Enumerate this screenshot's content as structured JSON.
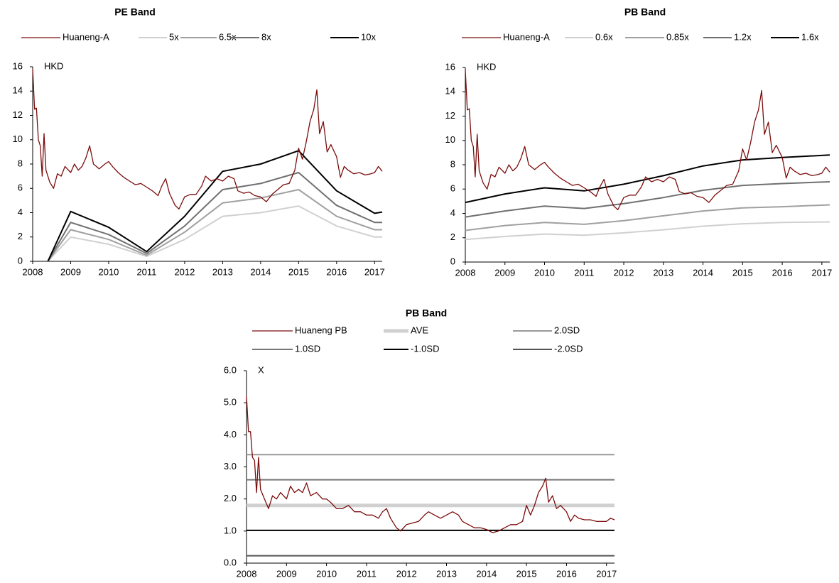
{
  "chart_data": [
    {
      "type": "line",
      "title": "PE Band",
      "unit": "HKD",
      "xlim": [
        2008,
        2017.2
      ],
      "xticks": [
        2008,
        2009,
        2010,
        2011,
        2012,
        2013,
        2014,
        2015,
        2016,
        2017
      ],
      "ylim": [
        0,
        16
      ],
      "yticks": [
        0,
        2,
        4,
        6,
        8,
        10,
        12,
        14,
        16
      ],
      "series": [
        {
          "name": "Huaneng-A",
          "color": "#7b0c0c",
          "x": [
            2008.0,
            2008.05,
            2008.1,
            2008.15,
            2008.2,
            2008.25,
            2008.3,
            2008.35,
            2008.45,
            2008.55,
            2008.65,
            2008.75,
            2008.85,
            2009.0,
            2009.1,
            2009.2,
            2009.3,
            2009.4,
            2009.5,
            2009.6,
            2009.75,
            2009.9,
            2010.0,
            2010.1,
            2010.25,
            2010.4,
            2010.55,
            2010.7,
            2010.85,
            2011.0,
            2011.15,
            2011.3,
            2011.4,
            2011.5,
            2011.6,
            2011.75,
            2011.85,
            2012.0,
            2012.15,
            2012.3,
            2012.45,
            2012.55,
            2012.7,
            2012.85,
            2013.0,
            2013.15,
            2013.3,
            2013.4,
            2013.55,
            2013.7,
            2013.85,
            2014.0,
            2014.15,
            2014.3,
            2014.45,
            2014.6,
            2014.75,
            2014.9,
            2015.0,
            2015.1,
            2015.2,
            2015.3,
            2015.4,
            2015.48,
            2015.55,
            2015.65,
            2015.75,
            2015.85,
            2016.0,
            2016.1,
            2016.2,
            2016.3,
            2016.45,
            2016.6,
            2016.75,
            2016.9,
            2017.0,
            2017.1,
            2017.2
          ],
          "values": [
            15.8,
            12.5,
            12.6,
            10.0,
            9.5,
            7.0,
            10.5,
            7.5,
            6.5,
            6.0,
            7.2,
            7.0,
            7.8,
            7.3,
            8.0,
            7.5,
            7.8,
            8.5,
            9.5,
            8.0,
            7.6,
            8.0,
            8.2,
            7.8,
            7.3,
            6.9,
            6.6,
            6.3,
            6.4,
            6.1,
            5.8,
            5.4,
            6.2,
            6.8,
            5.6,
            4.6,
            4.3,
            5.3,
            5.5,
            5.5,
            6.2,
            7.0,
            6.6,
            6.8,
            6.6,
            7.0,
            6.8,
            5.8,
            5.6,
            5.7,
            5.4,
            5.3,
            4.9,
            5.5,
            5.9,
            6.3,
            6.4,
            7.5,
            9.3,
            8.4,
            9.8,
            11.5,
            12.5,
            14.1,
            10.5,
            11.5,
            9.0,
            9.6,
            8.6,
            6.9,
            7.8,
            7.5,
            7.2,
            7.3,
            7.1,
            7.2,
            7.3,
            7.8,
            7.4
          ]
        },
        {
          "name": "5x",
          "color": "#d0d0d0",
          "x": [
            2008.4,
            2009,
            2010,
            2011,
            2012,
            2013,
            2014,
            2015,
            2016,
            2017,
            2017.2
          ],
          "values": [
            0,
            2.0,
            1.4,
            0.4,
            1.8,
            3.7,
            4.0,
            4.55,
            2.9,
            2.0,
            2.0
          ]
        },
        {
          "name": "6.5x",
          "color": "#a0a0a0",
          "x": [
            2008.4,
            2009,
            2010,
            2011,
            2012,
            2013,
            2014,
            2015,
            2016,
            2017,
            2017.2
          ],
          "values": [
            0,
            2.6,
            1.8,
            0.5,
            2.4,
            4.8,
            5.2,
            5.9,
            3.7,
            2.6,
            2.6
          ]
        },
        {
          "name": "8x",
          "color": "#707070",
          "x": [
            2008.4,
            2009,
            2010,
            2011,
            2012,
            2013,
            2014,
            2015,
            2016,
            2017,
            2017.2
          ],
          "values": [
            0,
            3.2,
            2.2,
            0.65,
            2.9,
            5.9,
            6.4,
            7.3,
            4.6,
            3.2,
            3.2
          ]
        },
        {
          "name": "10x",
          "color": "#000000",
          "x": [
            2008.4,
            2009,
            2010,
            2011,
            2012,
            2013,
            2014,
            2015,
            2016,
            2017,
            2017.2
          ],
          "values": [
            0,
            4.1,
            2.8,
            0.8,
            3.7,
            7.4,
            8.0,
            9.1,
            5.8,
            3.95,
            4.05
          ]
        }
      ]
    },
    {
      "type": "line",
      "title": "PB Band",
      "unit": "HKD",
      "xlim": [
        2008,
        2017.2
      ],
      "xticks": [
        2008,
        2009,
        2010,
        2011,
        2012,
        2013,
        2014,
        2015,
        2016,
        2017
      ],
      "ylim": [
        0,
        16
      ],
      "yticks": [
        0,
        2,
        4,
        6,
        8,
        10,
        12,
        14,
        16
      ],
      "series": [
        {
          "name": "Huaneng-A",
          "color": "#7b0c0c",
          "x": [
            2008.0,
            2008.05,
            2008.1,
            2008.15,
            2008.2,
            2008.25,
            2008.3,
            2008.35,
            2008.45,
            2008.55,
            2008.65,
            2008.75,
            2008.85,
            2009.0,
            2009.1,
            2009.2,
            2009.3,
            2009.4,
            2009.5,
            2009.6,
            2009.75,
            2009.9,
            2010.0,
            2010.1,
            2010.25,
            2010.4,
            2010.55,
            2010.7,
            2010.85,
            2011.0,
            2011.15,
            2011.3,
            2011.4,
            2011.5,
            2011.6,
            2011.75,
            2011.85,
            2012.0,
            2012.15,
            2012.3,
            2012.45,
            2012.55,
            2012.7,
            2012.85,
            2013.0,
            2013.15,
            2013.3,
            2013.4,
            2013.55,
            2013.7,
            2013.85,
            2014.0,
            2014.15,
            2014.3,
            2014.45,
            2014.6,
            2014.75,
            2014.9,
            2015.0,
            2015.1,
            2015.2,
            2015.3,
            2015.4,
            2015.48,
            2015.55,
            2015.65,
            2015.75,
            2015.85,
            2016.0,
            2016.1,
            2016.2,
            2016.3,
            2016.45,
            2016.6,
            2016.75,
            2016.9,
            2017.0,
            2017.1,
            2017.2
          ],
          "values": [
            15.8,
            12.5,
            12.6,
            10.0,
            9.5,
            7.0,
            10.5,
            7.5,
            6.5,
            6.0,
            7.2,
            7.0,
            7.8,
            7.3,
            8.0,
            7.5,
            7.8,
            8.5,
            9.5,
            8.0,
            7.6,
            8.0,
            8.2,
            7.8,
            7.3,
            6.9,
            6.6,
            6.3,
            6.4,
            6.1,
            5.8,
            5.4,
            6.2,
            6.8,
            5.6,
            4.6,
            4.3,
            5.3,
            5.5,
            5.5,
            6.2,
            7.0,
            6.6,
            6.8,
            6.6,
            7.0,
            6.8,
            5.8,
            5.6,
            5.7,
            5.4,
            5.3,
            4.9,
            5.5,
            5.9,
            6.3,
            6.4,
            7.5,
            9.3,
            8.4,
            9.8,
            11.5,
            12.5,
            14.1,
            10.5,
            11.5,
            9.0,
            9.6,
            8.6,
            6.9,
            7.8,
            7.5,
            7.2,
            7.3,
            7.1,
            7.2,
            7.3,
            7.8,
            7.4
          ]
        },
        {
          "name": "0.6x",
          "color": "#d0d0d0",
          "x": [
            2008,
            2009,
            2010,
            2011,
            2012,
            2013,
            2014,
            2015,
            2016,
            2017.2
          ],
          "values": [
            1.85,
            2.1,
            2.3,
            2.2,
            2.4,
            2.65,
            2.95,
            3.15,
            3.25,
            3.3
          ]
        },
        {
          "name": "0.85x",
          "color": "#a0a0a0",
          "x": [
            2008,
            2009,
            2010,
            2011,
            2012,
            2013,
            2014,
            2015,
            2016,
            2017.2
          ],
          "values": [
            2.6,
            3.0,
            3.25,
            3.1,
            3.4,
            3.8,
            4.2,
            4.45,
            4.55,
            4.7
          ]
        },
        {
          "name": "1.2x",
          "color": "#707070",
          "x": [
            2008,
            2009,
            2010,
            2011,
            2012,
            2013,
            2014,
            2015,
            2016,
            2017.2
          ],
          "values": [
            3.7,
            4.2,
            4.6,
            4.4,
            4.8,
            5.3,
            5.9,
            6.3,
            6.45,
            6.6
          ]
        },
        {
          "name": "1.6x",
          "color": "#000000",
          "x": [
            2008,
            2009,
            2010,
            2011,
            2012,
            2013,
            2014,
            2015,
            2016,
            2017.2
          ],
          "values": [
            4.9,
            5.6,
            6.1,
            5.85,
            6.4,
            7.1,
            7.9,
            8.4,
            8.6,
            8.8
          ]
        }
      ]
    },
    {
      "type": "line",
      "title": "PB Band",
      "unit": "X",
      "xlim": [
        2008,
        2017.2
      ],
      "xticks": [
        2008,
        2009,
        2010,
        2011,
        2012,
        2013,
        2014,
        2015,
        2016,
        2017
      ],
      "ylim": [
        0,
        6
      ],
      "yticks": [
        {
          "value": 0,
          "label": "0.0"
        },
        {
          "value": 1,
          "label": "1.0"
        },
        {
          "value": 2,
          "label": "2.0"
        },
        {
          "value": 3,
          "label": "3.0"
        },
        {
          "value": 4,
          "label": "4.0"
        },
        {
          "value": 5,
          "label": "5.0"
        },
        {
          "value": 6,
          "label": "6.0"
        }
      ],
      "series": [
        {
          "name": "Huaneng PB",
          "color": "#7b0c0c",
          "x": [
            2008.0,
            2008.05,
            2008.1,
            2008.15,
            2008.2,
            2008.25,
            2008.3,
            2008.35,
            2008.45,
            2008.55,
            2008.65,
            2008.75,
            2008.85,
            2009.0,
            2009.1,
            2009.2,
            2009.3,
            2009.4,
            2009.5,
            2009.6,
            2009.75,
            2009.9,
            2010.0,
            2010.1,
            2010.25,
            2010.4,
            2010.55,
            2010.7,
            2010.85,
            2011.0,
            2011.15,
            2011.3,
            2011.4,
            2011.5,
            2011.6,
            2011.75,
            2011.85,
            2012.0,
            2012.15,
            2012.3,
            2012.45,
            2012.55,
            2012.7,
            2012.85,
            2013.0,
            2013.15,
            2013.3,
            2013.4,
            2013.55,
            2013.7,
            2013.85,
            2014.0,
            2014.15,
            2014.3,
            2014.45,
            2014.6,
            2014.75,
            2014.9,
            2015.0,
            2015.1,
            2015.2,
            2015.3,
            2015.4,
            2015.48,
            2015.55,
            2015.65,
            2015.75,
            2015.85,
            2016.0,
            2016.1,
            2016.2,
            2016.3,
            2016.45,
            2016.6,
            2016.75,
            2016.9,
            2017.0,
            2017.1,
            2017.2
          ],
          "values": [
            5.2,
            4.1,
            4.1,
            3.3,
            3.2,
            2.2,
            3.3,
            2.3,
            2.0,
            1.7,
            2.1,
            2.0,
            2.2,
            2.0,
            2.4,
            2.2,
            2.3,
            2.2,
            2.5,
            2.1,
            2.2,
            2.0,
            2.0,
            1.9,
            1.7,
            1.7,
            1.8,
            1.6,
            1.6,
            1.5,
            1.5,
            1.4,
            1.6,
            1.7,
            1.4,
            1.1,
            1.0,
            1.2,
            1.25,
            1.3,
            1.5,
            1.6,
            1.5,
            1.4,
            1.5,
            1.6,
            1.5,
            1.3,
            1.2,
            1.1,
            1.1,
            1.05,
            0.95,
            1.0,
            1.1,
            1.2,
            1.2,
            1.3,
            1.8,
            1.5,
            1.8,
            2.2,
            2.4,
            2.65,
            1.9,
            2.1,
            1.7,
            1.8,
            1.6,
            1.3,
            1.5,
            1.4,
            1.35,
            1.35,
            1.3,
            1.3,
            1.3,
            1.4,
            1.35
          ]
        },
        {
          "name": "AVE",
          "color": "#d0d0d0",
          "x": [
            2008,
            2017.2
          ],
          "values": [
            1.8,
            1.8
          ]
        },
        {
          "name": "2.0SD",
          "color": "#999999",
          "x": [
            2008,
            2017.2
          ],
          "values": [
            3.38,
            3.38
          ]
        },
        {
          "name": "1.0SD",
          "color": "#777777",
          "x": [
            2008,
            2017.2
          ],
          "values": [
            2.6,
            2.6
          ]
        },
        {
          "name": "-1.0SD",
          "color": "#000000",
          "x": [
            2008,
            2017.2
          ],
          "values": [
            1.02,
            1.02
          ]
        },
        {
          "name": "-2.0SD",
          "color": "#555555",
          "x": [
            2008,
            2017.2
          ],
          "values": [
            0.23,
            0.23
          ]
        }
      ]
    }
  ]
}
